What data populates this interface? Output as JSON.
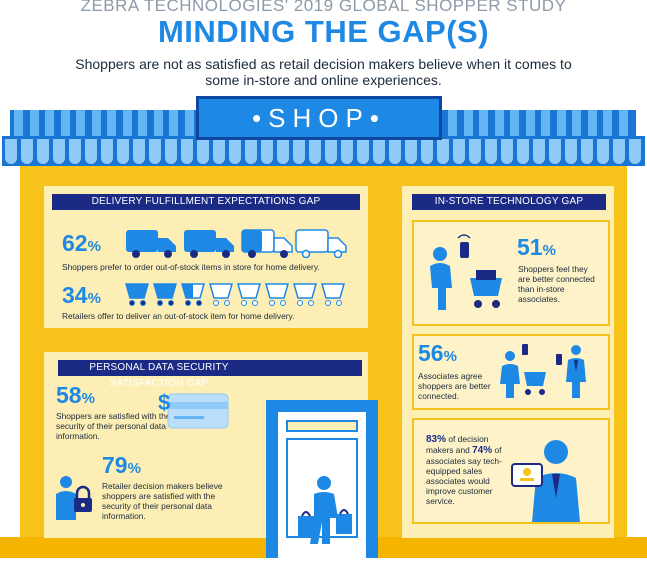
{
  "header": {
    "supertitle": "ZEBRA TECHNOLOGIES' 2019 GLOBAL SHOPPER STUDY",
    "title": "MINDING THE GAP(S)",
    "subtitle": "Shoppers are not as satisfied as retail decision makers believe when it comes to some in-store and online experiences."
  },
  "shop_sign": "•SHOP•",
  "delivery": {
    "heading": "DELIVERY FULFILLMENT EXPECTATIONS GAP",
    "stat1": {
      "value": "62",
      "unit": "%",
      "text": "Shoppers prefer to order out-of-stock items in store for home delivery."
    },
    "stat2": {
      "value": "34",
      "unit": "%",
      "text": "Retailers offer to deliver an out-of-stock item for home delivery."
    }
  },
  "security": {
    "heading": "PERSONAL DATA SECURITY SATISFACTION GAP",
    "stat1": {
      "value": "58",
      "unit": "%",
      "text": "Shoppers are satisfied with the security of their personal data information."
    },
    "stat2": {
      "value": "79",
      "unit": "%",
      "text": "Retailer decision makers believe shoppers are satisfied with the security of their personal data information."
    }
  },
  "tech": {
    "heading": "IN-STORE TECHNOLOGY GAP",
    "stat1": {
      "value": "51",
      "unit": "%",
      "text": "Shoppers feel they are better connected than in-store associates."
    },
    "stat2": {
      "value": "56",
      "unit": "%",
      "text": "Associates agree shoppers are better connected."
    },
    "stat3": {
      "value_a": "83%",
      "text_a": "of decision makers and",
      "value_b": "74%",
      "text_b": "of associates say tech-equipped sales associates would improve customer service."
    }
  },
  "colors": {
    "blue": "#1e88e5",
    "navy": "#1a2a85",
    "yellow": "#f7c21a",
    "cream": "#fdeeb6",
    "light_blue": "#90caf9"
  }
}
